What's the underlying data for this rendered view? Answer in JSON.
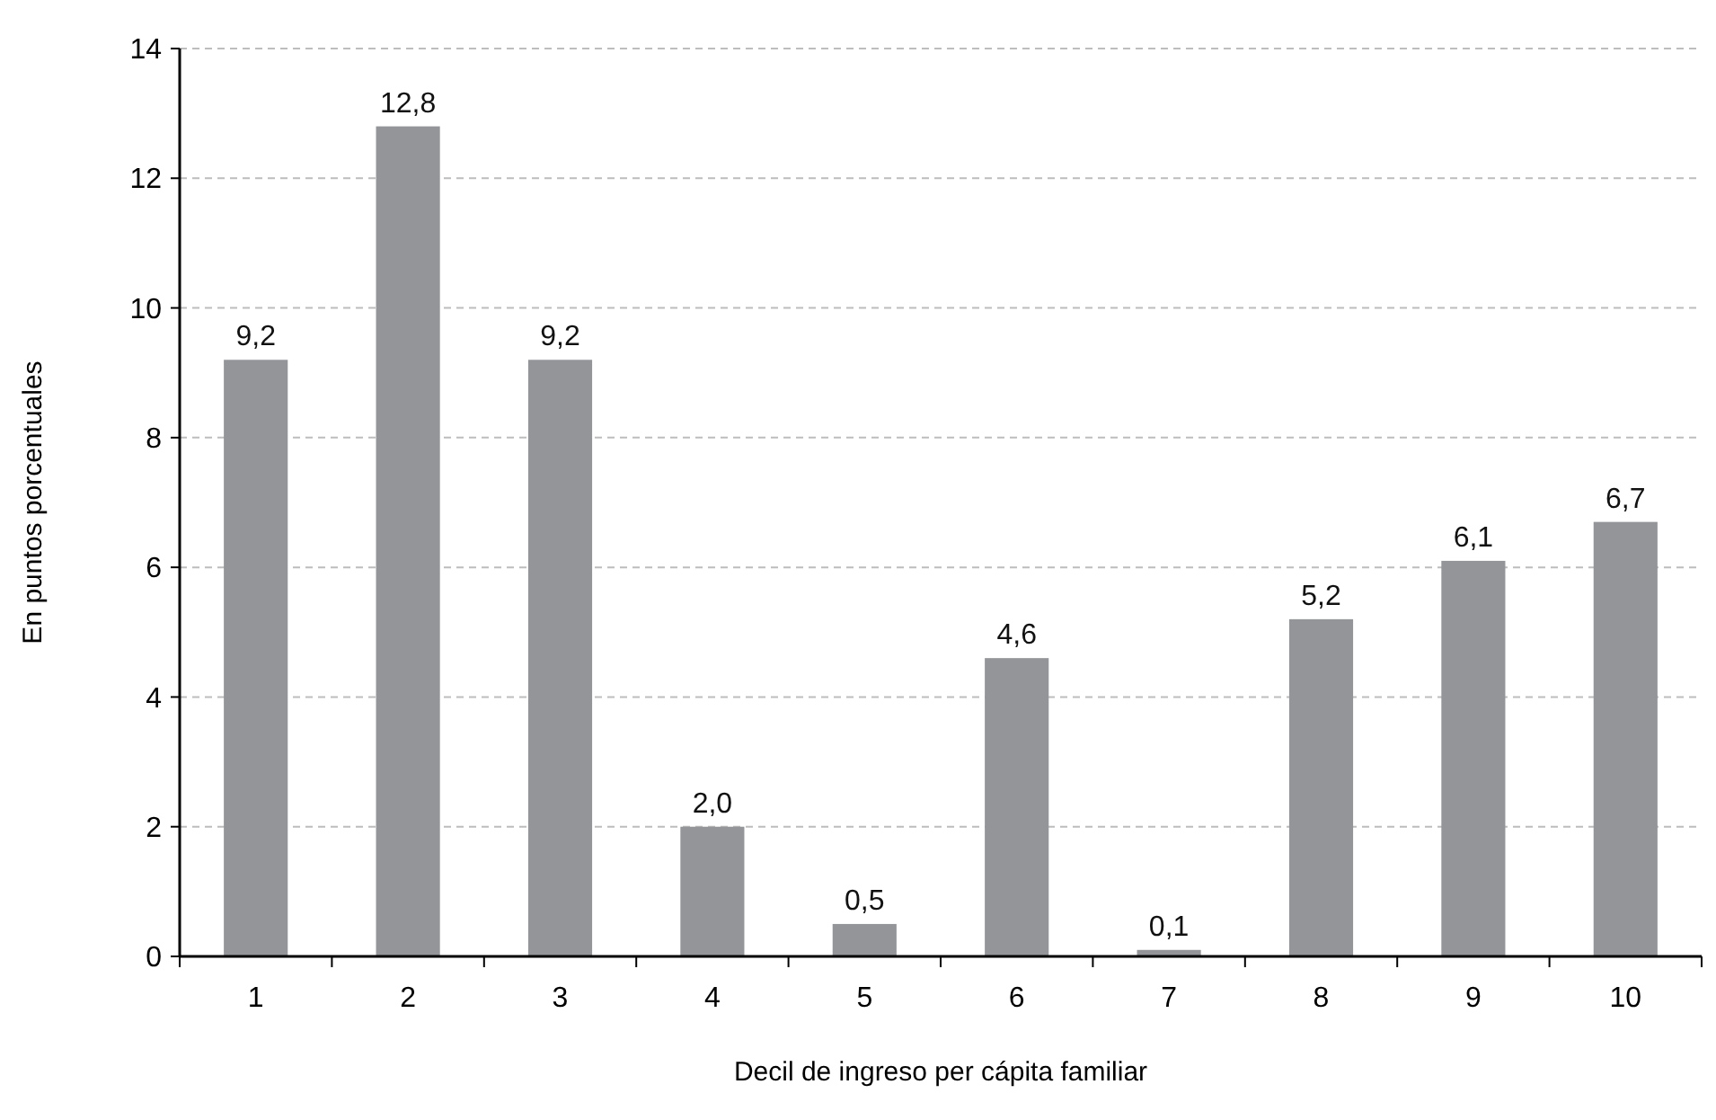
{
  "chart_data": {
    "type": "bar",
    "xlabel": "Decil de ingreso per cápita familiar",
    "ylabel": "En puntos porcentuales",
    "categories": [
      "1",
      "2",
      "3",
      "4",
      "5",
      "6",
      "7",
      "8",
      "9",
      "10"
    ],
    "values": [
      9.2,
      12.8,
      9.2,
      2.0,
      0.5,
      4.6,
      0.1,
      5.2,
      6.1,
      6.7
    ],
    "value_labels": [
      "9,2",
      "12,8",
      "9,2",
      "2,0",
      "0,5",
      "4,6",
      "0,1",
      "5,2",
      "6,1",
      "6,7"
    ],
    "color": "#939598",
    "ylim": [
      0,
      14
    ],
    "yticks": [
      0,
      2,
      4,
      6,
      8,
      10,
      12,
      14
    ],
    "grid": "y"
  }
}
